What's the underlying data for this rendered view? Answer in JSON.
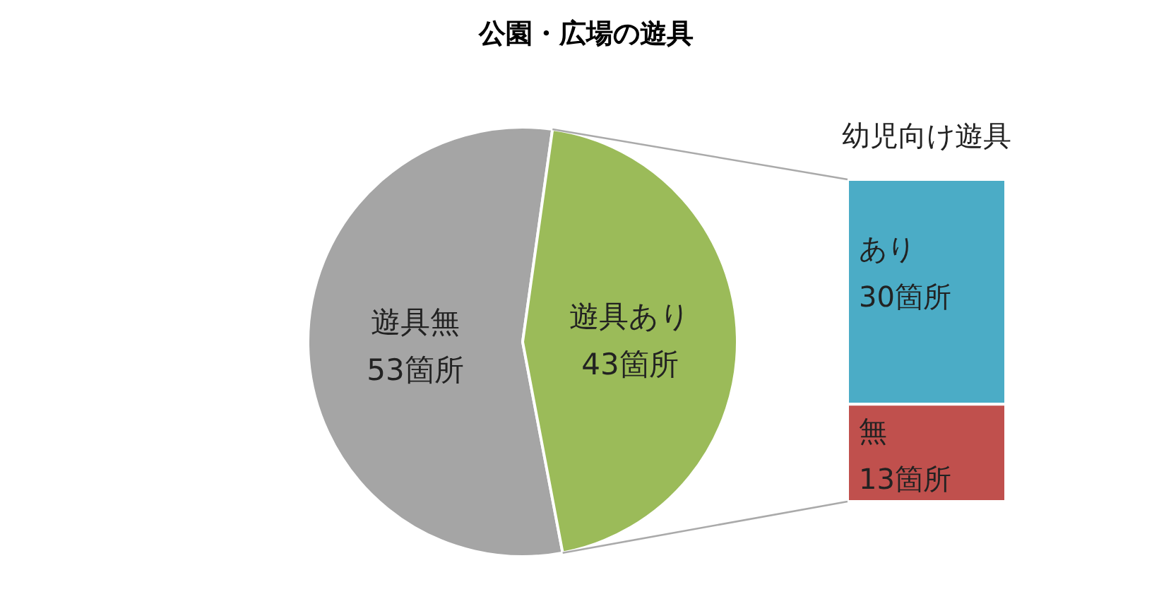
{
  "chart_data": [
    {
      "type": "pie",
      "title": "公園・広場の遊具",
      "categories": [
        "遊具無",
        "遊具あり"
      ],
      "values": [
        53,
        43
      ],
      "value_labels": [
        "53箇所",
        "43箇所"
      ],
      "colors": [
        "#a5a5a5",
        "#9bbb59"
      ]
    },
    {
      "type": "bar",
      "stacked": true,
      "title": "幼児向け遊具",
      "categories": [
        null
      ],
      "series": [
        {
          "name": "無",
          "color": "#c0504d",
          "values": [
            13
          ],
          "value_labels": [
            "13箇所"
          ]
        },
        {
          "name": "あり",
          "color": "#4bacc6",
          "values": [
            30
          ],
          "value_labels": [
            "30箇所"
          ]
        }
      ]
    }
  ]
}
